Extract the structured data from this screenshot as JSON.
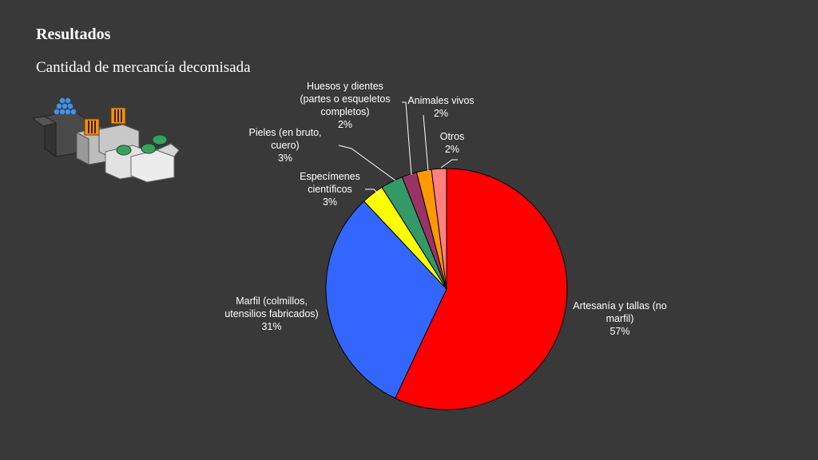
{
  "slide": {
    "title": "Resultados",
    "subtitle": "Cantidad de mercancía decomisada"
  },
  "illustration": {
    "icon": "confiscated-boxes-icon"
  },
  "chart_data": {
    "type": "pie",
    "slices": [
      {
        "label_lines": [
          "Artesanía y tallas (no",
          "marfil)"
        ],
        "label": "Artesanía y tallas (no marfil)",
        "percent_label": "57%",
        "value": 57,
        "color": "#ff0000"
      },
      {
        "label_lines": [
          "Marfil (colmillos,",
          "utensilios fabricados)"
        ],
        "label": "Marfil (colmillos, utensilios fabricados)",
        "percent_label": "31%",
        "value": 31,
        "color": "#3366ff"
      },
      {
        "label_lines": [
          "Especímenes",
          "científicos"
        ],
        "label": "Especímenes científicos",
        "percent_label": "3%",
        "value": 3,
        "color": "#ffff00"
      },
      {
        "label_lines": [
          "Pieles (en bruto,",
          "cuero)"
        ],
        "label": "Pieles (en bruto, cuero)",
        "percent_label": "3%",
        "value": 3,
        "color": "#339966"
      },
      {
        "label_lines": [
          "Huesos y dientes",
          "(partes o esqueletos",
          "completos)"
        ],
        "label": "Huesos y dientes (partes o esqueletos completos)",
        "percent_label": "2%",
        "value": 2,
        "color": "#993366"
      },
      {
        "label_lines": [
          "Animales vivos"
        ],
        "label": "Animales vivos",
        "percent_label": "2%",
        "value": 2,
        "color": "#ff9900"
      },
      {
        "label_lines": [
          "Otros"
        ],
        "label": "Otros",
        "percent_label": "2%",
        "value": 2,
        "color": "#ff8080"
      }
    ]
  }
}
